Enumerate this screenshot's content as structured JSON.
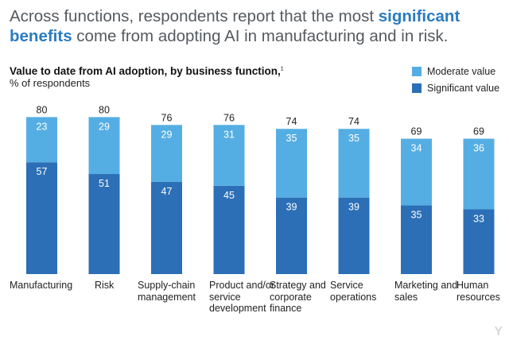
{
  "headline": {
    "part1": "Across functions, respondents report that the most ",
    "em1": "significant",
    "em2": "benefits",
    "part2": " come from adopting AI in manufacturing and in risk."
  },
  "colors": {
    "moderate": "#55aee3",
    "significant": "#2c6fb6"
  },
  "chart_data": {
    "type": "bar",
    "stacked": true,
    "title": "Value to date from AI adoption, by business function,",
    "title_footnote": "1",
    "unit_label": "% of respondents",
    "legend_position": "top-right",
    "categories": [
      "Manufacturing",
      "Risk",
      "Supply-chain management",
      "Product and/or service development",
      "Strategy and corporate finance",
      "Service operations",
      "Marketing and sales",
      "Human resources"
    ],
    "series": [
      {
        "name": "Significant value",
        "values": [
          57,
          51,
          47,
          45,
          39,
          39,
          35,
          33
        ]
      },
      {
        "name": "Moderate value",
        "values": [
          23,
          29,
          29,
          31,
          35,
          35,
          34,
          36
        ]
      }
    ],
    "totals": [
      80,
      80,
      76,
      76,
      74,
      74,
      69,
      69
    ],
    "ylim": [
      0,
      80
    ],
    "grid": false
  },
  "watermark": "Y"
}
